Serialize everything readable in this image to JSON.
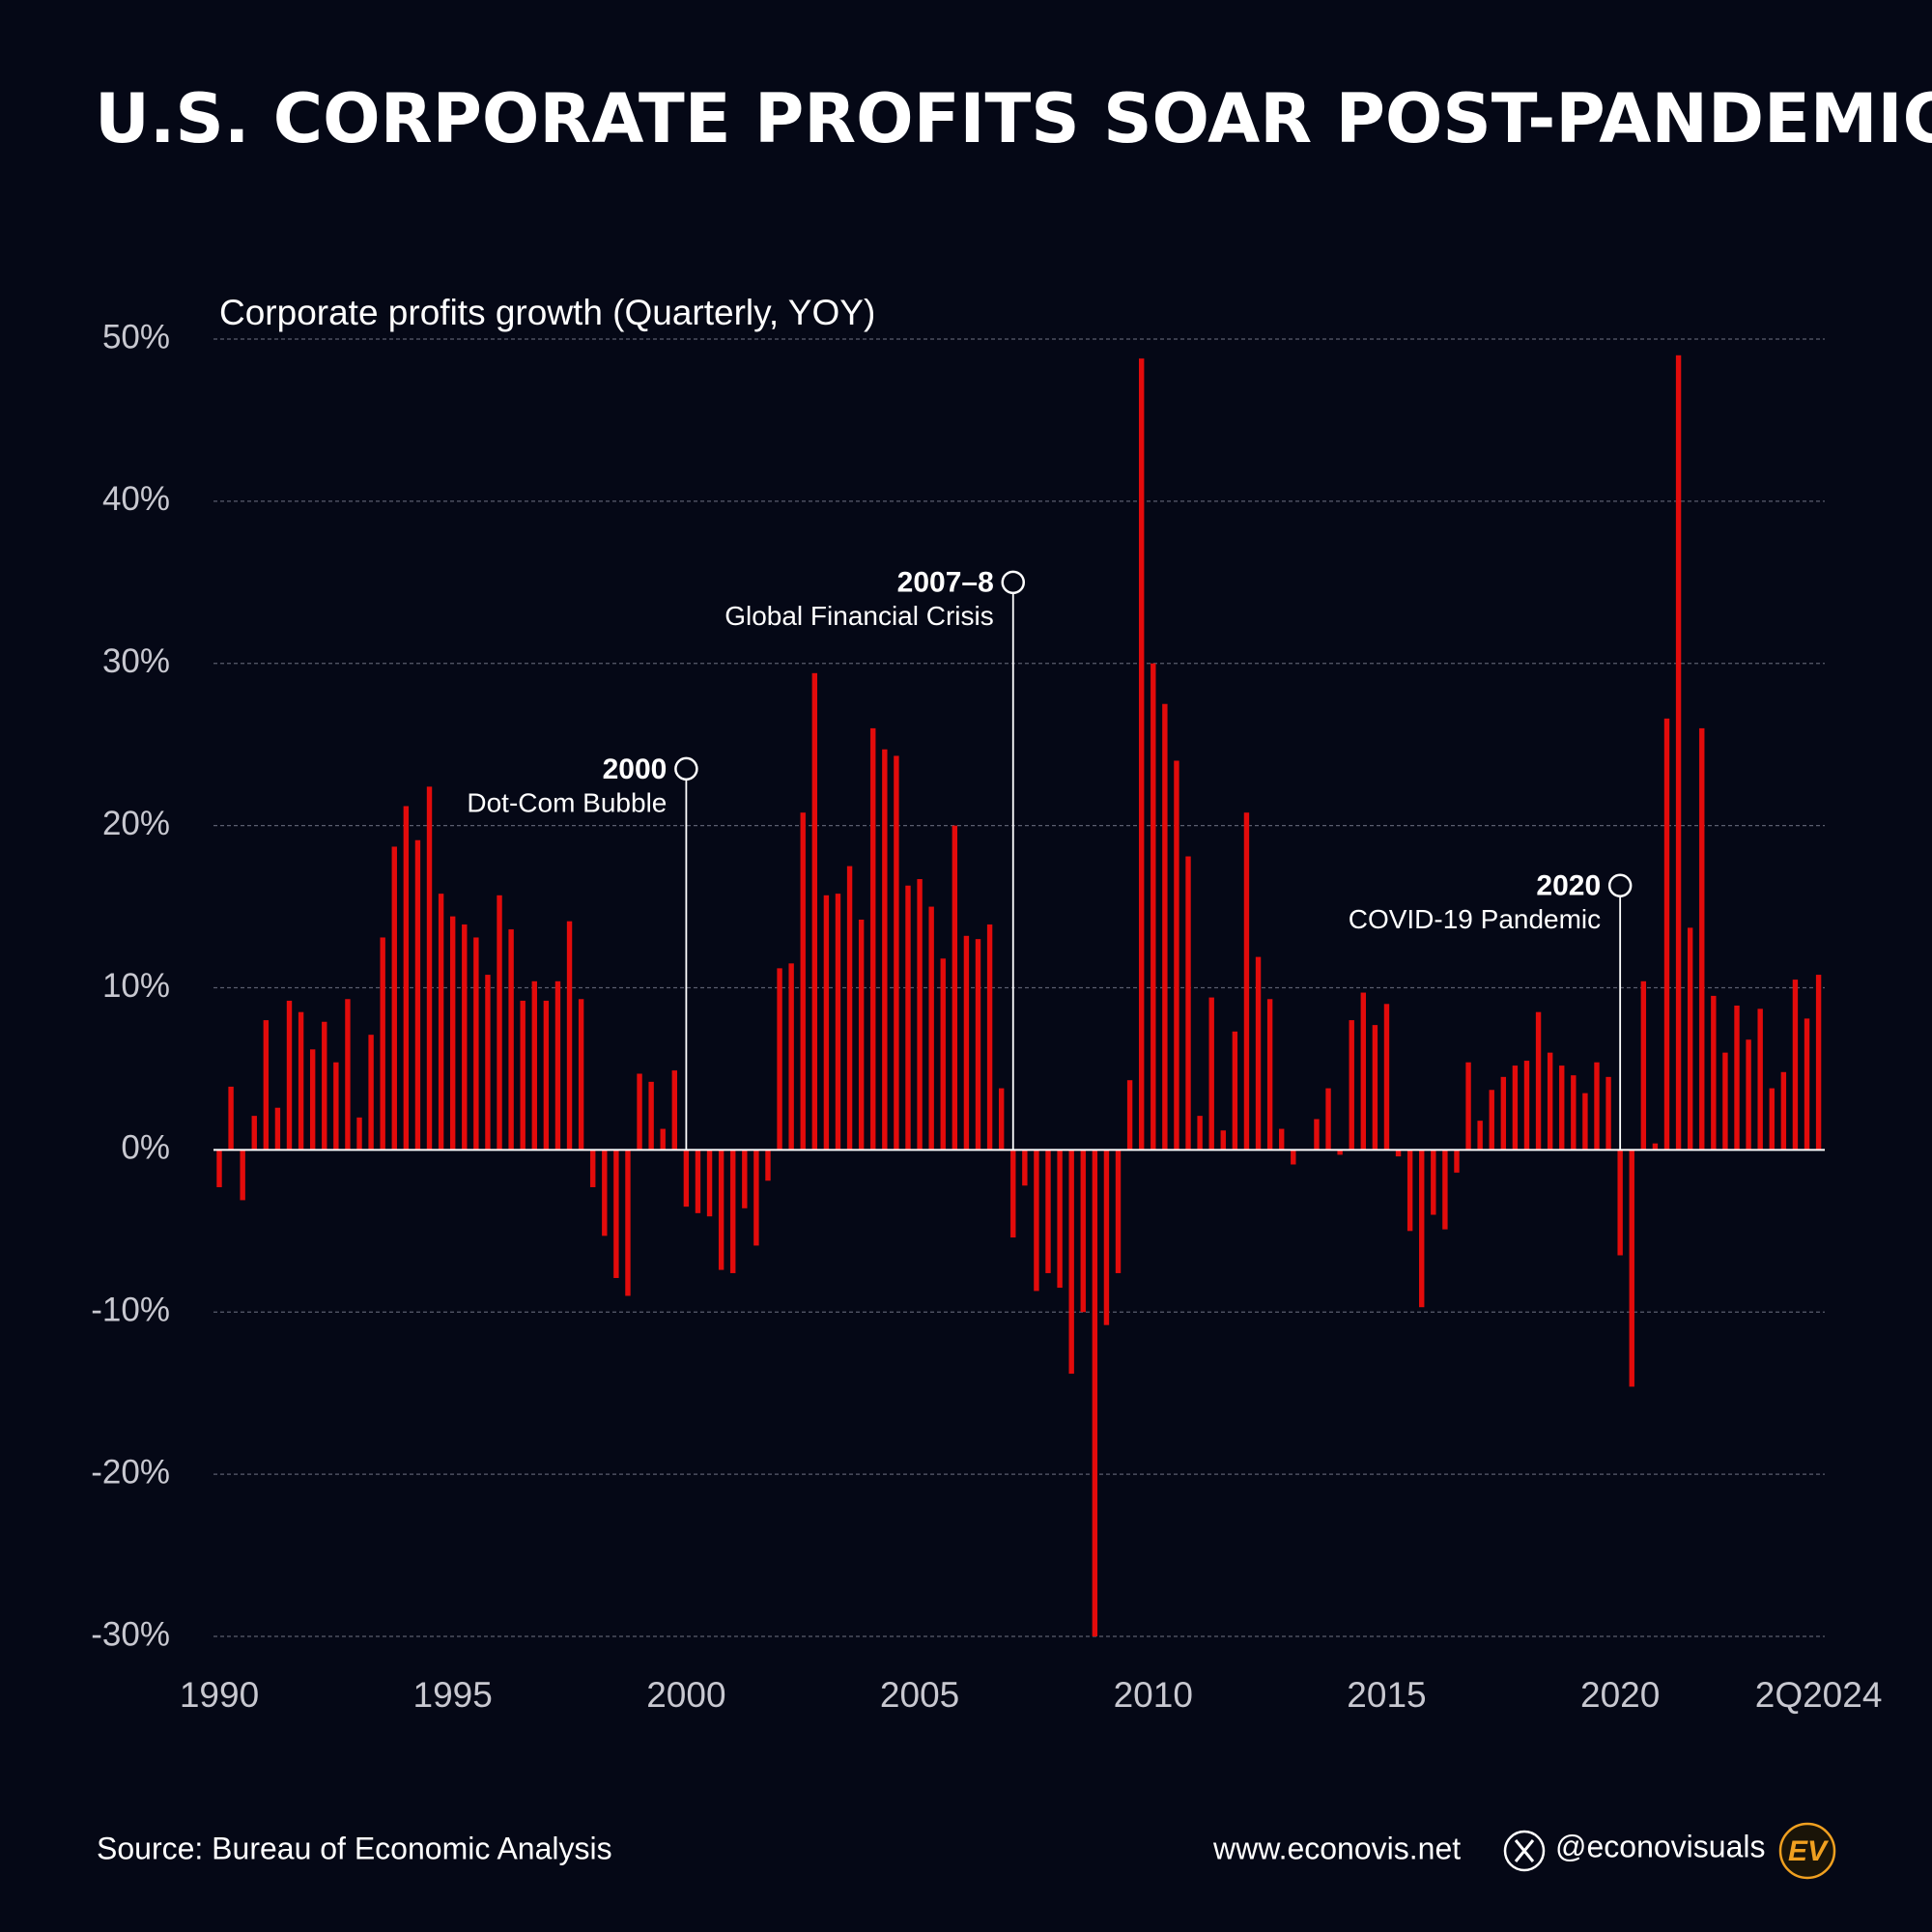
{
  "chart_data": {
    "type": "bar",
    "title": "U.S. CORPORATE PROFITS SOAR POST-PANDEMIC",
    "subtitle": "Corporate profits growth (Quarterly, YOY)",
    "categories": [
      "1990",
      null,
      null,
      null,
      null,
      null,
      null,
      null,
      null,
      null,
      null,
      null,
      null,
      null,
      null,
      null,
      null,
      null,
      null,
      null,
      "1995",
      null,
      null,
      null,
      null,
      null,
      null,
      null,
      null,
      null,
      null,
      null,
      null,
      null,
      null,
      null,
      null,
      null,
      null,
      null,
      "2000",
      null,
      null,
      null,
      null,
      null,
      null,
      null,
      null,
      null,
      null,
      null,
      null,
      null,
      null,
      null,
      null,
      null,
      null,
      null,
      "2005",
      null,
      null,
      null,
      null,
      null,
      null,
      null,
      null,
      null,
      null,
      null,
      null,
      null,
      null,
      null,
      null,
      null,
      null,
      null,
      "2010",
      null,
      null,
      null,
      null,
      null,
      null,
      null,
      null,
      null,
      null,
      null,
      null,
      null,
      null,
      null,
      null,
      null,
      null,
      null,
      "2015",
      null,
      null,
      null,
      null,
      null,
      null,
      null,
      null,
      null,
      null,
      null,
      null,
      null,
      null,
      null,
      null,
      null,
      null,
      null,
      "2020",
      null,
      null,
      null,
      null,
      null,
      null,
      null,
      null,
      null,
      null,
      null,
      null,
      null,
      null,
      null,
      null,
      "2Q2024"
    ],
    "values": [
      -2.3,
      3.9,
      -3.1,
      2.1,
      8.0,
      2.6,
      9.2,
      8.5,
      6.2,
      7.9,
      5.4,
      9.3,
      2.0,
      7.1,
      13.1,
      18.7,
      21.2,
      19.1,
      22.4,
      15.8,
      14.4,
      13.9,
      13.1,
      10.8,
      15.7,
      13.6,
      9.2,
      10.4,
      9.2,
      10.4,
      14.1,
      9.3,
      -2.3,
      -5.3,
      -7.9,
      -9.0,
      4.7,
      4.2,
      1.3,
      4.9,
      -3.5,
      -3.9,
      -4.1,
      -7.4,
      -7.6,
      -3.6,
      -5.9,
      -1.9,
      11.2,
      11.5,
      20.8,
      29.4,
      15.7,
      15.8,
      17.5,
      14.2,
      26.0,
      24.7,
      24.3,
      16.3,
      16.7,
      15.0,
      11.8,
      20.0,
      13.2,
      13.0,
      13.9,
      3.8,
      -5.4,
      -2.2,
      -8.7,
      -7.6,
      -8.5,
      -13.8,
      -10.0,
      -30.0,
      -10.8,
      -7.6,
      4.3,
      48.8,
      30.0,
      27.5,
      24.0,
      18.1,
      2.1,
      9.4,
      1.2,
      7.3,
      20.8,
      11.9,
      9.3,
      1.3,
      -0.9,
      0.0,
      1.9,
      3.8,
      -0.3,
      8.0,
      9.7,
      7.7,
      9.0,
      -0.4,
      -5.0,
      -9.7,
      -4.0,
      -4.9,
      -1.4,
      5.4,
      1.8,
      3.7,
      4.5,
      5.2,
      5.5,
      8.5,
      6.0,
      5.2,
      4.6,
      3.5,
      5.4,
      4.5,
      -6.5,
      -14.6,
      10.4,
      0.4,
      26.6,
      49.0,
      13.7,
      26.0,
      9.5,
      6.0,
      8.9,
      6.8,
      8.7,
      3.8,
      4.8,
      10.5,
      8.1,
      10.8
    ],
    "color": "#e30b0b",
    "ylim": [
      -30,
      50
    ],
    "yticks": [
      {
        "value": -30,
        "label": "-30%"
      },
      {
        "value": -20,
        "label": "-20%"
      },
      {
        "value": -10,
        "label": "-10%"
      },
      {
        "value": 0,
        "label": "0%"
      },
      {
        "value": 10,
        "label": "10%"
      },
      {
        "value": 20,
        "label": "20%"
      },
      {
        "value": 30,
        "label": "30%"
      },
      {
        "value": 40,
        "label": "40%"
      },
      {
        "value": 50,
        "label": "50%"
      }
    ],
    "grid": true,
    "annotations": [
      {
        "label": "2000",
        "text": "Dot-Com Bubble"
      },
      {
        "label": "2007–8",
        "text": "Global Financial Crisis"
      },
      {
        "label": "2020",
        "text": "COVID-19 Pandemic"
      }
    ]
  },
  "footer": {
    "source": "Source: Bureau of Economic Analysis",
    "website": "www.econovis.net",
    "social": "@econovisuals",
    "logo": "EV"
  }
}
